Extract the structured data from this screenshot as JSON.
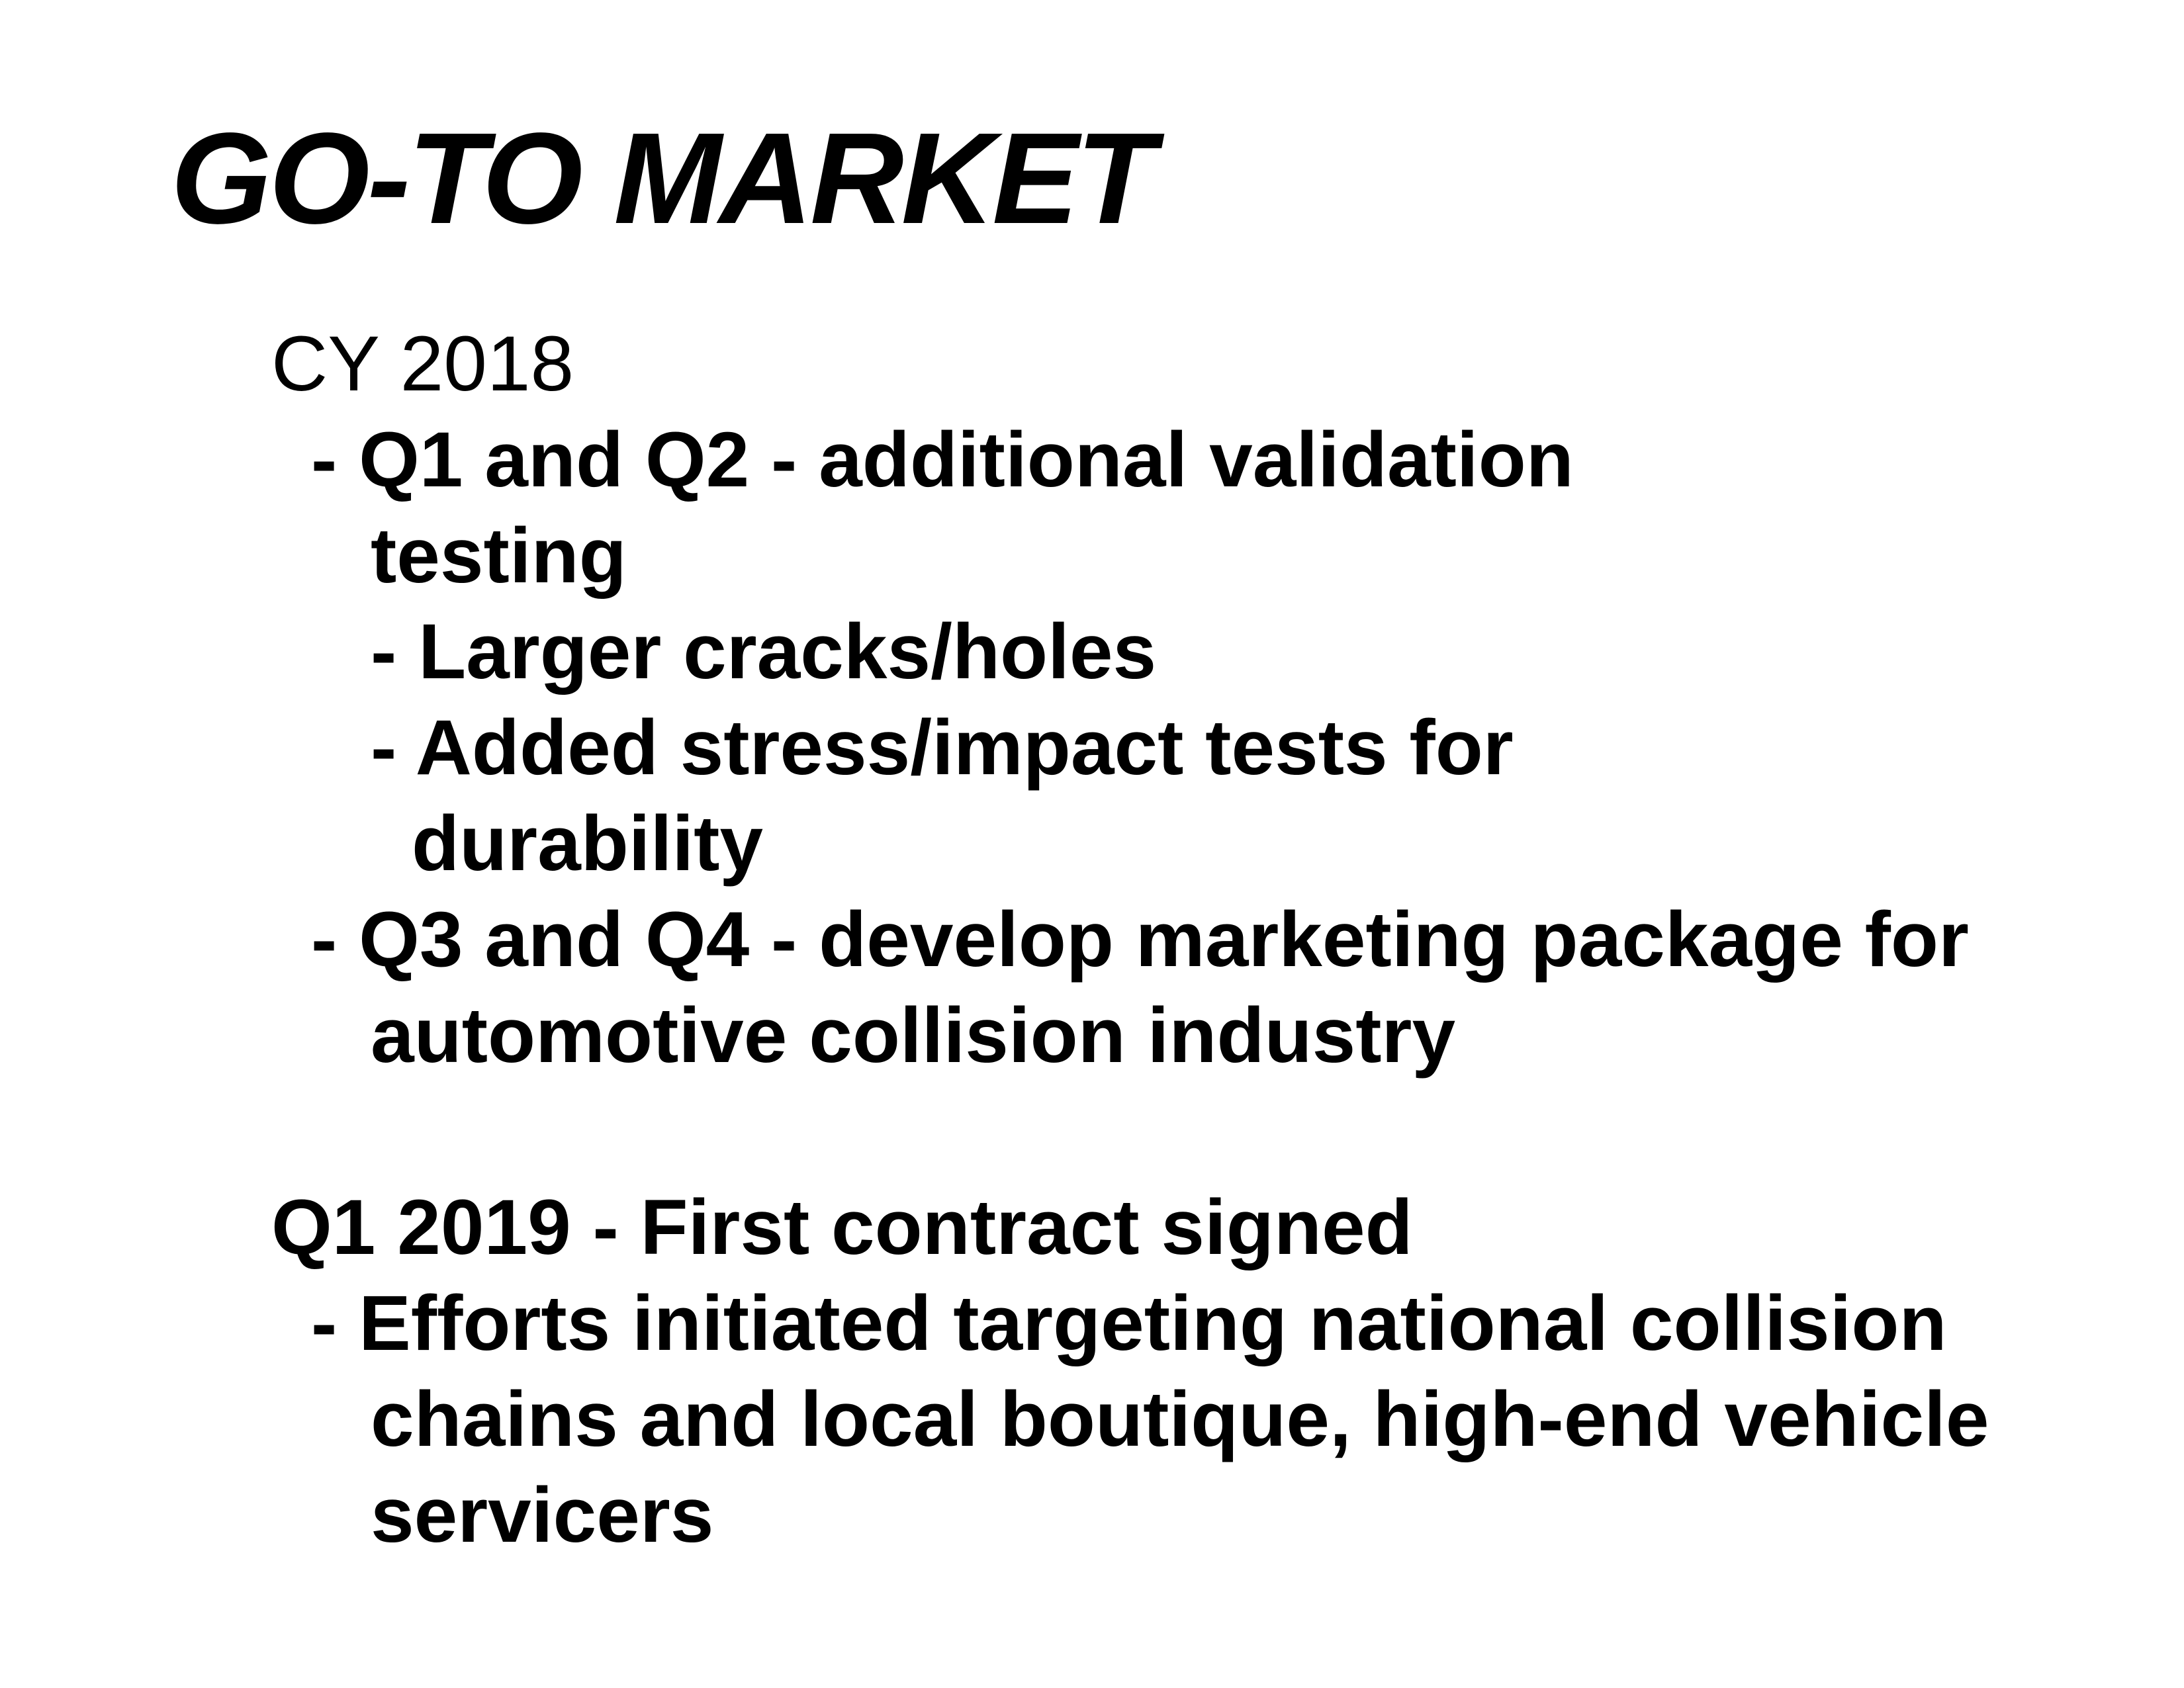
{
  "slide": {
    "title": "GO-TO MARKET",
    "section_2018": {
      "heading": "CY 2018",
      "q1_q2_line1": "- Q1 and Q2 - additional validation",
      "q1_q2_line2": "testing",
      "sub_item_1": "- Larger cracks/holes",
      "sub_item_2_line1": "- Added stress/impact tests for",
      "sub_item_2_line2": "durability",
      "q3_q4_line1": "- Q3 and Q4 - develop marketing package for",
      "q3_q4_line2": "automotive collision industry"
    },
    "section_2019": {
      "heading": "Q1 2019 - First contract signed",
      "efforts_line1": "- Efforts initiated targeting national collision",
      "efforts_line2": "chains and local boutique, high-end vehicle",
      "efforts_line3": "servicers"
    }
  }
}
